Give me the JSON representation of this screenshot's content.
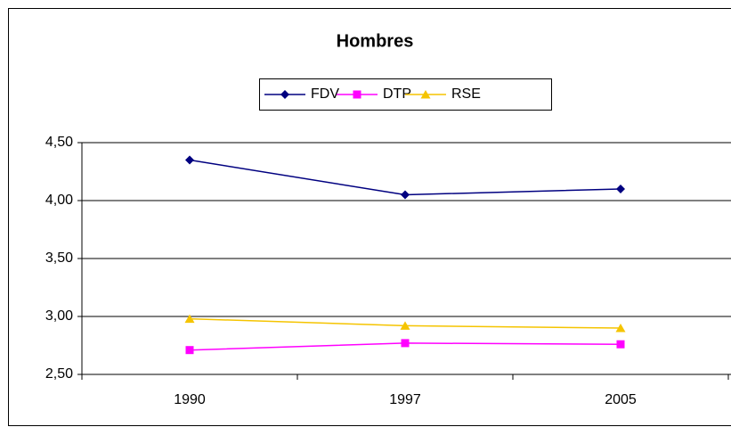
{
  "chart_data": {
    "type": "line",
    "title": "Hombres",
    "categories": [
      "1990",
      "1997",
      "2005"
    ],
    "series": [
      {
        "name": "FDV",
        "color": "#000080",
        "marker": "diamond",
        "values": [
          4.35,
          4.05,
          4.1
        ]
      },
      {
        "name": "DTP",
        "color": "#ff00ff",
        "marker": "square",
        "values": [
          2.71,
          2.77,
          2.76
        ]
      },
      {
        "name": "RSE",
        "color": "#f5c400",
        "marker": "triangle",
        "values": [
          2.98,
          2.92,
          2.9
        ]
      }
    ],
    "ylim": [
      2.5,
      4.5
    ],
    "yticks": [
      {
        "value": 2.5,
        "label": "2,50"
      },
      {
        "value": 3.0,
        "label": "3,00"
      },
      {
        "value": 3.5,
        "label": "3,50"
      },
      {
        "value": 4.0,
        "label": "4,00"
      },
      {
        "value": 4.5,
        "label": "4,50"
      }
    ],
    "grid": true,
    "legend": "top"
  }
}
